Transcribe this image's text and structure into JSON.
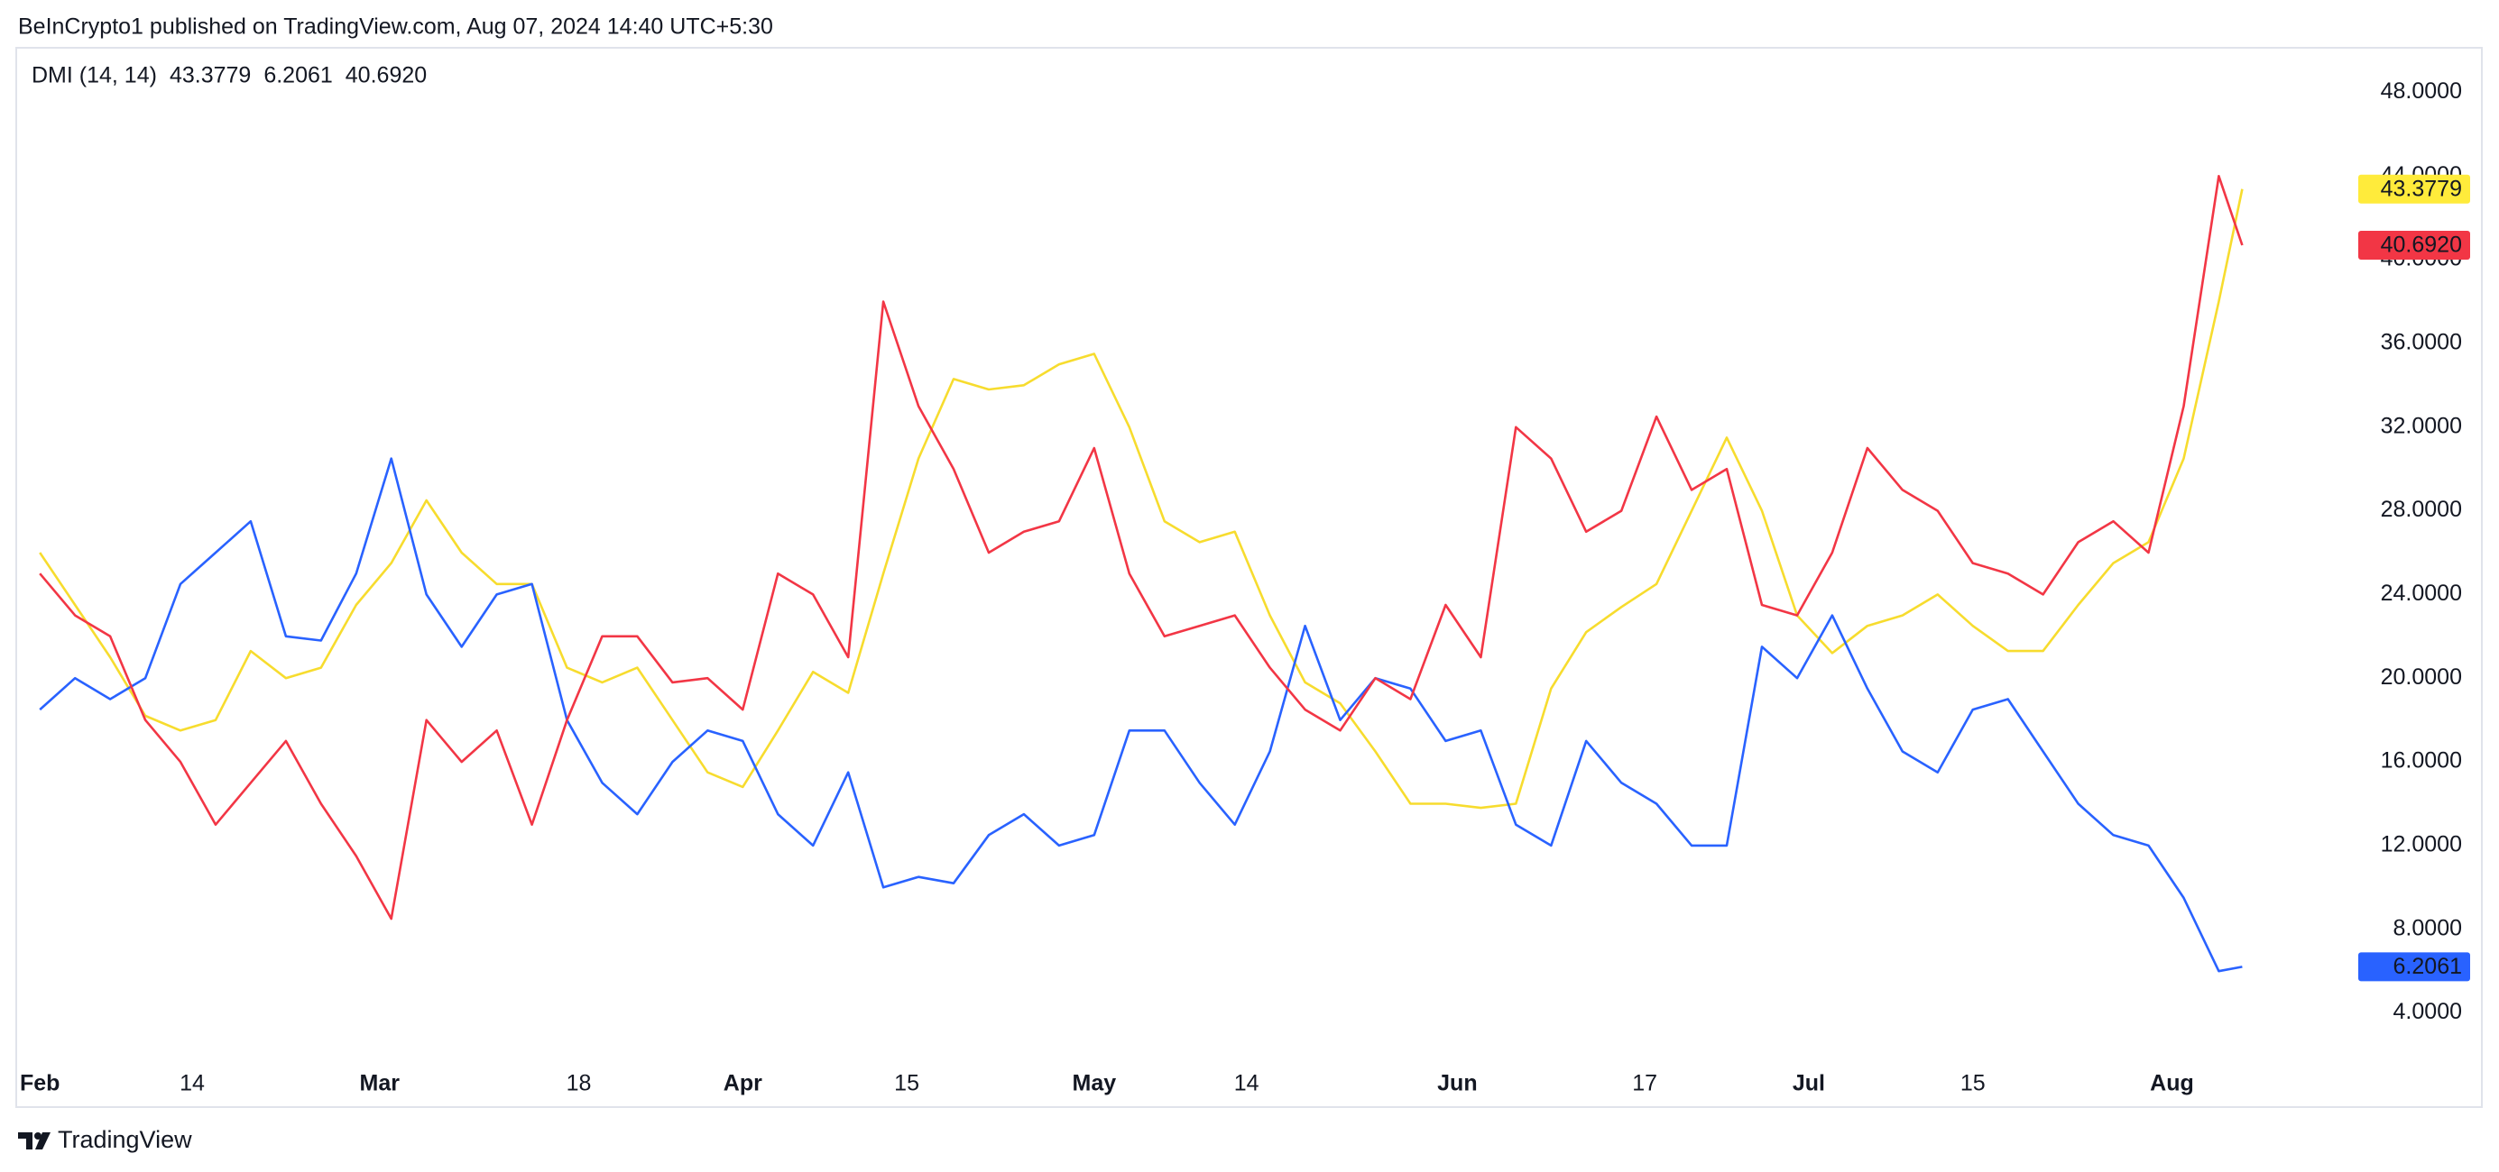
{
  "header": {
    "text": "BeInCrypto1 published on TradingView.com, Aug 07, 2024 14:40 UTC+5:30"
  },
  "footer": {
    "brand": "TradingView"
  },
  "chart_data": {
    "type": "line",
    "indicator": "DMI (14, 14)",
    "grid": false,
    "x": [
      "Feb 1",
      "Feb 4",
      "Feb 7",
      "Feb 10",
      "Feb 13",
      "Feb 16",
      "Feb 19",
      "Feb 22",
      "Feb 25",
      "Feb 28",
      "Mar 2",
      "Mar 5",
      "Mar 8",
      "Mar 11",
      "Mar 14",
      "Mar 17",
      "Mar 20",
      "Mar 23",
      "Mar 26",
      "Mar 29",
      "Apr 1",
      "Apr 4",
      "Apr 7",
      "Apr 10",
      "Apr 13",
      "Apr 16",
      "Apr 19",
      "Apr 22",
      "Apr 25",
      "Apr 28",
      "May 1",
      "May 4",
      "May 7",
      "May 10",
      "May 13",
      "May 16",
      "May 19",
      "May 22",
      "May 25",
      "May 28",
      "May 31",
      "Jun 3",
      "Jun 6",
      "Jun 9",
      "Jun 12",
      "Jun 15",
      "Jun 18",
      "Jun 21",
      "Jun 24",
      "Jun 27",
      "Jun 30",
      "Jul 3",
      "Jul 6",
      "Jul 9",
      "Jul 12",
      "Jul 15",
      "Jul 18",
      "Jul 21",
      "Jul 24",
      "Jul 27",
      "Jul 30",
      "Aug 2",
      "Aug 5",
      "Aug 7"
    ],
    "series": [
      {
        "color": "#f7dc2e",
        "label_bg": "#ffeb3b",
        "label_text_color": "#131722",
        "last_value_label": "43.3779",
        "values": [
          26,
          23.5,
          21,
          18.2,
          17.5,
          18,
          21.3,
          20,
          20.5,
          23.5,
          25.5,
          28.5,
          26,
          24.5,
          24.5,
          20.5,
          19.8,
          20.5,
          18,
          15.5,
          14.8,
          17.5,
          20.3,
          19.3,
          25,
          30.5,
          34.3,
          33.8,
          34,
          35,
          35.5,
          32,
          27.5,
          26.5,
          27,
          23,
          19.8,
          18.8,
          16.5,
          14,
          14,
          13.8,
          14,
          19.5,
          22.2,
          23.4,
          24.5,
          28,
          31.5,
          28,
          23,
          21.2,
          22.5,
          23,
          24,
          22.5,
          21.3,
          21.3,
          23.5,
          25.5,
          26.5,
          30.5,
          38,
          43.3779
        ]
      },
      {
        "color": "#2962ff",
        "label_bg": "#2962ff",
        "label_text_color": "#ffffff",
        "last_value_label": "6.2061",
        "values": [
          18.5,
          20,
          19,
          20,
          24.5,
          26,
          27.5,
          22,
          21.8,
          25,
          30.5,
          24,
          21.5,
          24,
          24.5,
          18,
          15,
          13.5,
          16,
          17.5,
          17,
          13.5,
          12,
          15.5,
          10,
          10.5,
          10.2,
          12.5,
          13.5,
          12,
          12.5,
          17.5,
          17.5,
          15,
          13,
          16.5,
          22.5,
          18,
          20,
          19.5,
          17,
          17.5,
          13,
          12,
          17,
          15,
          14,
          12,
          12,
          21.5,
          20,
          23,
          19.5,
          16.5,
          15.5,
          18.5,
          19,
          16.5,
          14,
          12.5,
          12,
          9.5,
          6,
          6.2061
        ]
      },
      {
        "color": "#f23645",
        "label_bg": "#f23645",
        "label_text_color": "#ffffff",
        "last_value_label": "40.6920",
        "values": [
          25,
          23,
          22,
          18,
          16,
          13,
          15,
          17,
          14,
          11.5,
          8.5,
          18,
          16,
          17.5,
          13,
          18,
          22,
          22,
          19.8,
          20,
          18.5,
          25,
          24,
          21,
          38,
          33,
          30,
          26,
          27,
          27.5,
          31,
          25,
          22,
          22.5,
          23,
          20.5,
          18.5,
          17.5,
          20,
          19,
          23.5,
          21,
          32,
          30.5,
          27,
          28,
          32.5,
          29,
          30,
          23.5,
          23,
          26,
          31,
          29,
          28,
          25.5,
          25,
          24,
          26.5,
          27.5,
          26,
          33,
          44,
          40.692
        ]
      }
    ],
    "ylim": [
      -0.5,
      50.13
    ],
    "yticks": [
      {
        "value": 4,
        "label": "4.0000"
      },
      {
        "value": 8,
        "label": "8.0000"
      },
      {
        "value": 12,
        "label": "12.0000"
      },
      {
        "value": 16,
        "label": "16.0000"
      },
      {
        "value": 20,
        "label": "20.0000"
      },
      {
        "value": 24,
        "label": "24.0000"
      },
      {
        "value": 28,
        "label": "28.0000"
      },
      {
        "value": 32,
        "label": "32.0000"
      },
      {
        "value": 36,
        "label": "36.0000"
      },
      {
        "value": 40,
        "label": "40.0000"
      },
      {
        "value": 44,
        "label": "44.0000"
      },
      {
        "value": 48,
        "label": "48.0000"
      }
    ],
    "xticks": [
      {
        "value": "Feb 1",
        "label": "Feb"
      },
      {
        "value": "Feb 14",
        "label": "14"
      },
      {
        "value": "Mar 1",
        "label": "Mar"
      },
      {
        "value": "Mar 18",
        "label": "18"
      },
      {
        "value": "Apr 1",
        "label": "Apr"
      },
      {
        "value": "Apr 15",
        "label": "15"
      },
      {
        "value": "May 1",
        "label": "May"
      },
      {
        "value": "May 14",
        "label": "14"
      },
      {
        "value": "Jun 1",
        "label": "Jun"
      },
      {
        "value": "Jun 17",
        "label": "17"
      },
      {
        "value": "Jul 1",
        "label": "Jul"
      },
      {
        "value": "Jul 15",
        "label": "15"
      },
      {
        "value": "Aug 1",
        "label": "Aug"
      }
    ]
  }
}
